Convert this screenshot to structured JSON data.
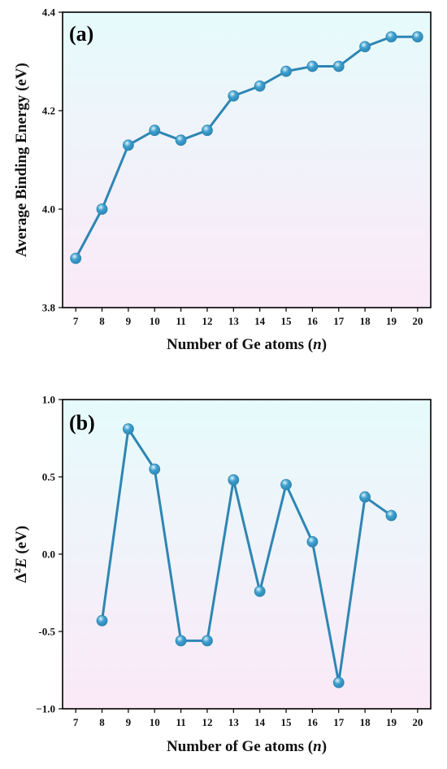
{
  "colors": {
    "line": "#2e86b3",
    "marker": "#3ea0cf",
    "marker_highlight": "#dff3fb",
    "bg_top": "#e6fbfb",
    "bg_bottom": "#fbe9f8",
    "axis": "#000000"
  },
  "chart_data": [
    {
      "type": "line",
      "panel_label": "(a)",
      "xlabel": "Number of Ge atoms (",
      "xlabel_italic": "n",
      "xlabel_end": ")",
      "ylabel": "Average Binding Energy (eV)",
      "xlim": [
        6.5,
        20.5
      ],
      "ylim": [
        3.8,
        4.4
      ],
      "xticks": [
        "7",
        "8",
        "9",
        "10",
        "11",
        "12",
        "13",
        "14",
        "15",
        "16",
        "17",
        "18",
        "19",
        "20"
      ],
      "yticks": [
        "3.8",
        "4.0",
        "4.2",
        "4.4"
      ],
      "ytick_values": [
        3.8,
        4.0,
        4.2,
        4.4
      ],
      "x": [
        7,
        8,
        9,
        10,
        11,
        12,
        13,
        14,
        15,
        16,
        17,
        18,
        19,
        20
      ],
      "y": [
        3.9,
        4.0,
        4.13,
        4.16,
        4.14,
        4.16,
        4.23,
        4.25,
        4.28,
        4.29,
        4.29,
        4.33,
        4.35,
        4.35
      ],
      "grid": false,
      "legend": "none"
    },
    {
      "type": "line",
      "panel_label": "(b)",
      "xlabel": "Number of Ge atoms (",
      "xlabel_italic": "n",
      "xlabel_end": ")",
      "ylabel_prefix": "Δ",
      "ylabel_sup": "2",
      "ylabel_italic": "E",
      "ylabel_suffix": " (eV)",
      "xlim": [
        6.5,
        20.5
      ],
      "ylim": [
        -1.0,
        1.0
      ],
      "xticks": [
        "7",
        "8",
        "9",
        "10",
        "11",
        "12",
        "13",
        "14",
        "15",
        "16",
        "17",
        "18",
        "19",
        "20"
      ],
      "yticks": [
        "−1.0",
        "-0.5",
        "0.0",
        "0.5",
        "1.0"
      ],
      "ytick_values": [
        -1.0,
        -0.5,
        0.0,
        0.5,
        1.0
      ],
      "x": [
        8,
        9,
        10,
        11,
        12,
        13,
        14,
        15,
        16,
        17,
        18,
        19
      ],
      "y": [
        -0.43,
        0.81,
        0.55,
        -0.56,
        -0.56,
        0.48,
        -0.24,
        0.45,
        0.08,
        -0.83,
        0.37,
        0.25
      ],
      "grid": false,
      "legend": "none"
    }
  ]
}
